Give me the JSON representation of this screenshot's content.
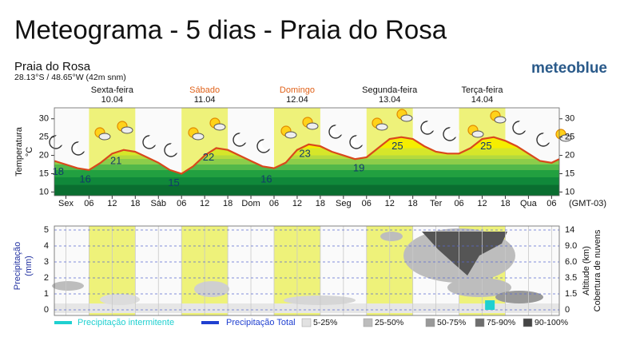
{
  "header": {
    "title": "Meteograma - 5 dias - Praia do Rosa",
    "place": "Praia do Rosa",
    "coords": "28.13°S / 48.65°W (42m snm)",
    "brand": "meteoblue"
  },
  "chart_data": [
    {
      "type": "line",
      "ylabel": "Temperatura",
      "yunit": "°C",
      "timezone": "(GMT-03)",
      "color": "#d9481c",
      "x": [
        -3,
        0,
        3,
        6,
        9,
        12,
        15,
        18,
        21,
        24,
        27,
        30,
        33,
        36,
        39,
        42,
        45,
        48,
        51,
        54,
        57,
        60,
        63,
        66,
        69,
        72,
        75,
        78,
        81,
        84,
        87,
        90,
        93,
        96,
        99,
        102,
        105,
        108,
        111,
        114,
        117,
        120,
        123,
        126,
        128
      ],
      "values": [
        18.5,
        17.5,
        16.5,
        16,
        18,
        20.5,
        21.5,
        21,
        19.5,
        18,
        16,
        15,
        17,
        20,
        22,
        21.5,
        20,
        18.5,
        17,
        16.5,
        18,
        21.5,
        23,
        22.5,
        21,
        20,
        19,
        19.5,
        22,
        24.5,
        25,
        24.5,
        22.5,
        21,
        20.5,
        20.5,
        22,
        24.5,
        25,
        24,
        22.5,
        20.5,
        18.5,
        18,
        19
      ],
      "xlim": [
        -3,
        128
      ],
      "ylim": [
        9,
        33
      ],
      "yticks": [
        10,
        15,
        20,
        25,
        30
      ],
      "xticks": [
        {
          "value": 0,
          "label": "Sex"
        },
        {
          "value": 6,
          "label": "06"
        },
        {
          "value": 12,
          "label": "12"
        },
        {
          "value": 18,
          "label": "18"
        },
        {
          "value": 24,
          "label": "Sáb"
        },
        {
          "value": 30,
          "label": "06"
        },
        {
          "value": 36,
          "label": "12"
        },
        {
          "value": 42,
          "label": "18"
        },
        {
          "value": 48,
          "label": "Dom"
        },
        {
          "value": 54,
          "label": "06"
        },
        {
          "value": 60,
          "label": "12"
        },
        {
          "value": 66,
          "label": "18"
        },
        {
          "value": 72,
          "label": "Seg"
        },
        {
          "value": 78,
          "label": "06"
        },
        {
          "value": 84,
          "label": "12"
        },
        {
          "value": 90,
          "label": "18"
        },
        {
          "value": 96,
          "label": "Ter"
        },
        {
          "value": 102,
          "label": "06"
        },
        {
          "value": 108,
          "label": "12"
        },
        {
          "value": 114,
          "label": "18"
        },
        {
          "value": 120,
          "label": "Qua"
        },
        {
          "value": 126,
          "label": "06"
        }
      ],
      "days": [
        {
          "name": "Sexta-feira",
          "date": "10.04",
          "color": "#111111"
        },
        {
          "name": "Sábado",
          "date": "11.04",
          "color": "#e0621a"
        },
        {
          "name": "Domingo",
          "date": "12.04",
          "color": "#e0621a"
        },
        {
          "name": "Segunda-feira",
          "date": "13.04",
          "color": "#111111"
        },
        {
          "name": "Terça-feira",
          "date": "14.04",
          "color": "#111111"
        }
      ],
      "annotations": [
        {
          "x": -2,
          "value": 18
        },
        {
          "x": 5,
          "value": 16
        },
        {
          "x": 13,
          "value": 21
        },
        {
          "x": 28,
          "value": 15
        },
        {
          "x": 37,
          "value": 22
        },
        {
          "x": 52,
          "value": 16
        },
        {
          "x": 62,
          "value": 23
        },
        {
          "x": 76,
          "value": 19
        },
        {
          "x": 86,
          "value": 25
        },
        {
          "x": 109,
          "value": 25
        }
      ]
    },
    {
      "type": "bar",
      "ylabel": "Precipitação",
      "yunit": "(mm)",
      "y2label": "Altitude (km)",
      "y3label": "Cobertura de nuvens",
      "ylim": [
        -0.35,
        5.25
      ],
      "yticks": [
        0,
        1,
        2,
        3,
        4,
        5
      ],
      "y2ticks": [
        0,
        {
          "value": 1.5,
          "label": "1.5"
        },
        {
          "value": 3.5,
          "label": "3.5"
        },
        {
          "value": 6,
          "label": "6.0"
        },
        {
          "value": 9,
          "label": "9.0"
        },
        14
      ],
      "series": [
        {
          "name": "Precipitação intermitente",
          "color": "#1fd0d0",
          "x": [
            110
          ],
          "values": [
            0.6
          ]
        },
        {
          "name": "Precipitação Total",
          "color": "#2040d0",
          "x": [],
          "values": []
        }
      ],
      "cloud_legend": [
        {
          "label": "5-25%",
          "color": "#e2e2e2"
        },
        {
          "label": "25-50%",
          "color": "#bdbdbd"
        },
        {
          "label": "50-75%",
          "color": "#999999"
        },
        {
          "label": "75-90%",
          "color": "#6e6e6e"
        },
        {
          "label": "90-100%",
          "color": "#444444"
        }
      ]
    }
  ]
}
